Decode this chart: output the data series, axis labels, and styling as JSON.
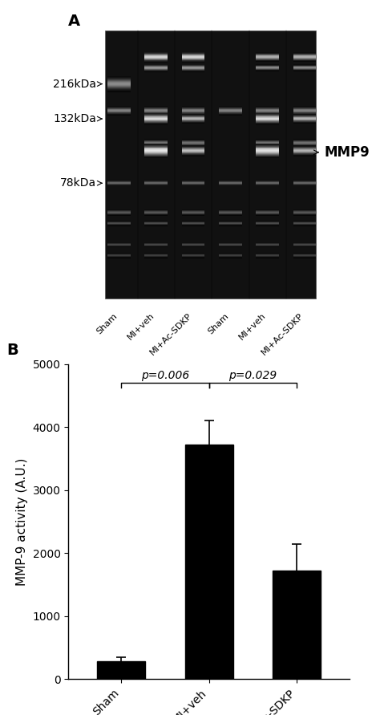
{
  "panel_A_label": "A",
  "panel_B_label": "B",
  "mw_labels": [
    "216kDa",
    "132kDa",
    "78kDa"
  ],
  "mmp9_label": "MMP9",
  "x_labels_gel": [
    "Sham",
    "MI+veh",
    "MI+Ac-SDKP",
    "Sham",
    "MI+veh",
    "MI+Ac-SDKP"
  ],
  "bar_categories": [
    "Sham",
    "MI+veh",
    "MI+Ac-SDKP"
  ],
  "bar_values": [
    290,
    3720,
    1720
  ],
  "bar_errors": [
    60,
    380,
    420
  ],
  "bar_color": "#000000",
  "ylabel": "MMP-9 activity (A.U.)",
  "ylim": [
    0,
    5000
  ],
  "yticks": [
    0,
    1000,
    2000,
    3000,
    4000,
    5000
  ],
  "sig1_label": "p=0.006",
  "sig2_label": "p=0.029",
  "figure_bg": "#ffffff",
  "font_size_axis": 11,
  "font_size_tick": 10,
  "font_size_panel": 14,
  "font_size_sig": 10,
  "font_size_mw": 10,
  "font_size_mmp": 12
}
